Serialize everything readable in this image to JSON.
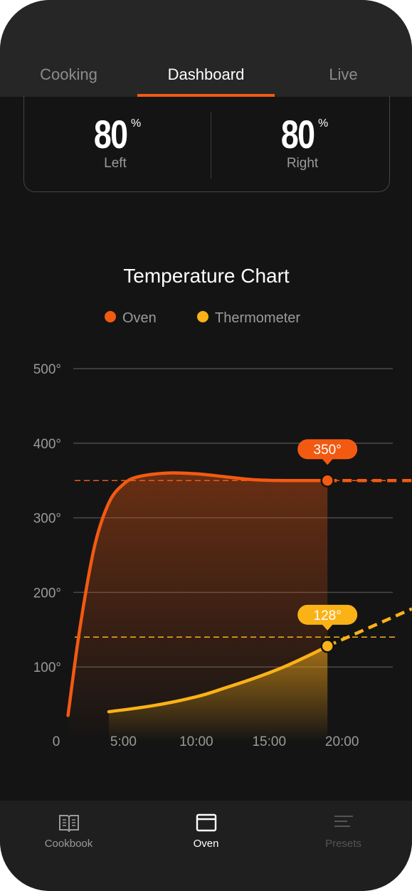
{
  "tabs": {
    "items": [
      "Cooking",
      "Dashboard",
      "Live"
    ],
    "active": 1
  },
  "fans": [
    {
      "value": "80",
      "unit": "%",
      "label": "Left"
    },
    {
      "value": "80",
      "unit": "%",
      "label": "Right"
    }
  ],
  "chart_data": {
    "type": "line",
    "title": "Temperature Chart",
    "series": [
      {
        "name": "Oven",
        "color": "#f25a12",
        "x": [
          1.2,
          2,
          3,
          4,
          5,
          6,
          8,
          10,
          12,
          14,
          16,
          19
        ],
        "values": [
          35,
          150,
          260,
          320,
          345,
          355,
          360,
          359,
          355,
          351,
          350,
          350
        ],
        "target": 350,
        "current": {
          "x": 19,
          "value": 350,
          "label": "350°"
        },
        "forecast": {
          "x": [
            19,
            24.8
          ],
          "values": [
            350,
            350
          ]
        }
      },
      {
        "name": "Thermometer",
        "color": "#fbb217",
        "x": [
          4,
          7,
          10,
          12,
          14,
          16,
          18,
          19
        ],
        "values": [
          40,
          48,
          60,
          72,
          85,
          100,
          118,
          128
        ],
        "target": 140,
        "current": {
          "x": 19,
          "value": 128,
          "label": "128°"
        },
        "forecast": {
          "x": [
            19,
            24.8
          ],
          "values": [
            128,
            178
          ]
        }
      }
    ],
    "xlim": [
      0,
      24.8
    ],
    "ylim": [
      0,
      500
    ],
    "xticks": [
      0,
      {
        "value": 5,
        "label": "5:00"
      },
      {
        "value": 10,
        "label": "10:00"
      },
      {
        "value": 15,
        "label": "15:00"
      },
      {
        "value": 20,
        "label": "20:00"
      }
    ],
    "yticks": [
      {
        "value": 100,
        "label": "100°"
      },
      {
        "value": 200,
        "label": "200°"
      },
      {
        "value": 300,
        "label": "300°"
      },
      {
        "value": 400,
        "label": "400°"
      },
      {
        "value": 500,
        "label": "500°"
      }
    ],
    "grid": true
  },
  "nav": {
    "items": [
      "Cookbook",
      "Oven",
      "Presets"
    ],
    "active": 1
  }
}
